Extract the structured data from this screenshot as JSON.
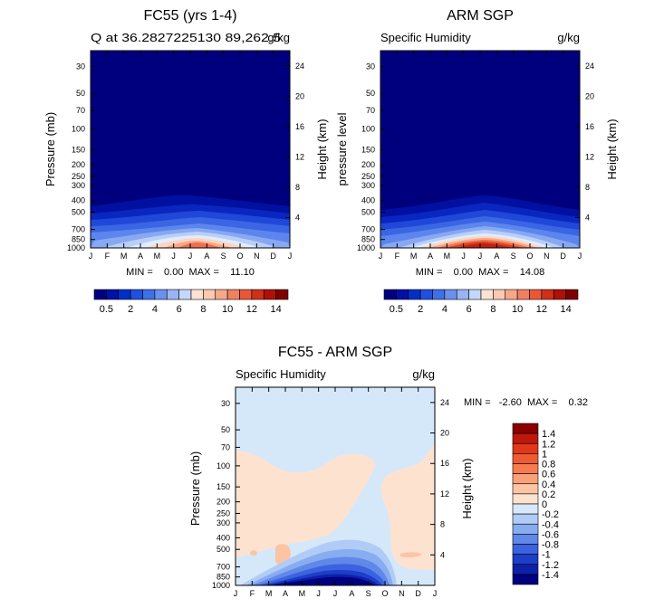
{
  "panels": [
    {
      "title": "FC55 (yrs 1-4)",
      "left_label": "Q at 36.2827225130 89,262.5",
      "units": "g/kg",
      "ylabel_left": "Pressure (mb)",
      "ylabel_right": "Height (km)",
      "minmax": "MIN =    0.00  MAX =    11.10",
      "min": 0.0,
      "max": 11.1,
      "peak_month": "Jul"
    },
    {
      "title": "ARM SGP",
      "left_label": "Specific Humidity",
      "units": "g/kg",
      "ylabel_left": "pressure level",
      "ylabel_right": "Height (km)",
      "minmax": "MIN =    0.00  MAX =    14.08",
      "min": 0.0,
      "max": 14.08,
      "peak_month": "Jul"
    },
    {
      "title": "FC55 - ARM SGP",
      "left_label": "Specific Humidity",
      "units": "g/kg",
      "ylabel_left": "Pressure (mb)",
      "ylabel_right": "Height (km)",
      "minmax": "MIN =   -2.60  MAX =    0.32",
      "min": -2.6,
      "max": 0.32
    }
  ],
  "chart_data": [
    {
      "type": "heatmap",
      "title": "FC55 (yrs 1-4)",
      "subtitle": "Q at 36.2827225130 89,262.5",
      "units": "g/kg",
      "x": [
        "J",
        "F",
        "M",
        "A",
        "M",
        "J",
        "J",
        "A",
        "S",
        "O",
        "N",
        "D",
        "J"
      ],
      "y_pressure_ticks": [
        30,
        50,
        70,
        100,
        150,
        200,
        250,
        300,
        400,
        500,
        700,
        850,
        1000
      ],
      "y_height_ticks": [
        4,
        8,
        12,
        16,
        20,
        24
      ],
      "ylabel": "Pressure (mb)",
      "y2label": "Height (km)",
      "min": 0.0,
      "max": 11.1
    },
    {
      "type": "heatmap",
      "title": "ARM SGP",
      "subtitle": "Specific Humidity",
      "units": "g/kg",
      "x": [
        "J",
        "F",
        "M",
        "A",
        "M",
        "J",
        "J",
        "A",
        "S",
        "O",
        "N",
        "D",
        "J"
      ],
      "y_pressure_ticks": [
        30,
        50,
        70,
        100,
        150,
        200,
        250,
        300,
        400,
        500,
        700,
        850,
        1000
      ],
      "y_height_ticks": [
        4,
        8,
        12,
        16,
        20,
        24
      ],
      "ylabel": "pressure level",
      "y2label": "Height (km)",
      "min": 0.0,
      "max": 14.08
    },
    {
      "type": "heatmap",
      "title": "FC55 - ARM SGP",
      "subtitle": "Specific Humidity",
      "units": "g/kg",
      "x": [
        "J",
        "F",
        "M",
        "A",
        "M",
        "J",
        "J",
        "A",
        "S",
        "O",
        "N",
        "D",
        "J"
      ],
      "y_pressure_ticks": [
        30,
        50,
        70,
        100,
        150,
        200,
        250,
        300,
        400,
        500,
        700,
        850,
        1000
      ],
      "y_height_ticks": [
        4,
        8,
        12,
        16,
        20,
        24
      ],
      "ylabel": "Pressure (mb)",
      "y2label": "Height (km)",
      "min": -2.6,
      "max": 0.32
    }
  ],
  "colorbar_top": {
    "labels": [
      "0.5",
      "2",
      "4",
      "6",
      "8",
      "10",
      "12",
      "14"
    ],
    "colors": [
      "#000080",
      "#0010a8",
      "#0030c8",
      "#2050e0",
      "#4070e8",
      "#6a90f0",
      "#98b4f4",
      "#c4d8fa",
      "#fde2d4",
      "#fcc8b0",
      "#f8a888",
      "#f28060",
      "#e85838",
      "#d03018",
      "#b01008",
      "#800000"
    ]
  },
  "colorbar_diff": {
    "labels": [
      "1.4",
      "1.2",
      "1",
      "0.8",
      "0.6",
      "0.4",
      "0.2",
      "0",
      "-0.2",
      "-0.4",
      "-0.6",
      "-0.8",
      "-1",
      "-1.2",
      "-1.4"
    ],
    "colors": [
      "#8a0000",
      "#c01808",
      "#e23818",
      "#f05a30",
      "#f67c50",
      "#f8a078",
      "#fcc4a4",
      "#fde2d0",
      "#d6e8fa",
      "#b0ccf6",
      "#88acf0",
      "#6088e8",
      "#3c62e0",
      "#1c3ec8",
      "#0c20a8",
      "#000080"
    ]
  },
  "colors": {
    "navy": "#00007f",
    "light_blue": "#d4e8fa",
    "peach": "#fde2d0"
  }
}
